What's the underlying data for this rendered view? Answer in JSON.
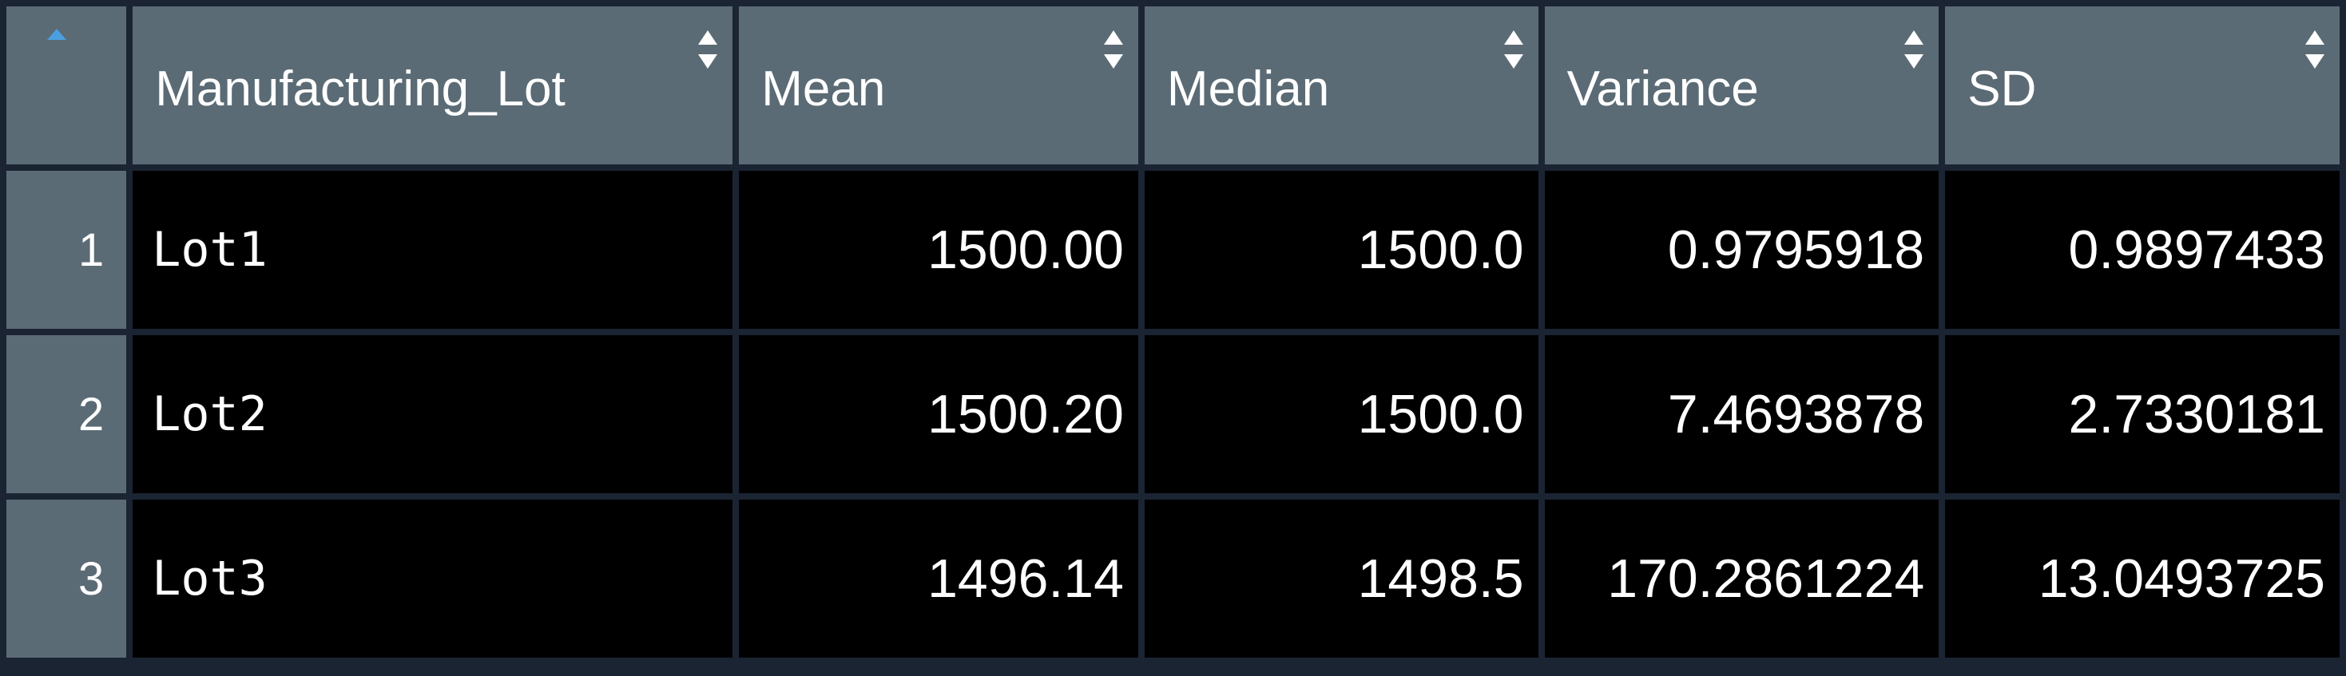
{
  "table": {
    "columns": [
      {
        "label": "",
        "sort": "asc"
      },
      {
        "label": "Manufacturing_Lot",
        "sort": "none"
      },
      {
        "label": "Mean",
        "sort": "none"
      },
      {
        "label": "Median",
        "sort": "none"
      },
      {
        "label": "Variance",
        "sort": "none"
      },
      {
        "label": "SD",
        "sort": "none"
      }
    ],
    "rows": [
      {
        "index": "1",
        "lot": "Lot1",
        "mean": "1500.00",
        "median": "1500.0",
        "variance": "0.9795918",
        "sd": "0.9897433"
      },
      {
        "index": "2",
        "lot": "Lot2",
        "mean": "1500.20",
        "median": "1500.0",
        "variance": "7.4693878",
        "sd": "2.7330181"
      },
      {
        "index": "3",
        "lot": "Lot3",
        "mean": "1496.14",
        "median": "1498.5",
        "variance": "170.2861224",
        "sd": "13.0493725"
      }
    ]
  },
  "colors": {
    "background": "#1b2433",
    "header_bg": "#5b6b75",
    "cell_bg": "#000000",
    "text": "#ffffff",
    "sort_active": "#4a9fe0",
    "sort_inactive": "#ffffff"
  },
  "icons": {
    "sort_ascending": "sort-ascending-icon",
    "sort_both": "sort-both-icon"
  }
}
